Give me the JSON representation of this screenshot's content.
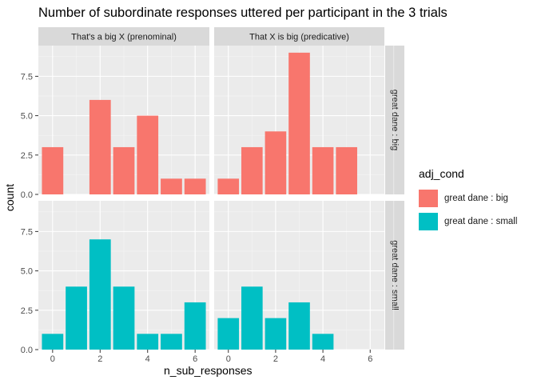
{
  "chart_data": {
    "type": "bar",
    "title": "Number of subordinate responses uttered per participant in the 3 trials",
    "xlabel": "n_sub_responses",
    "ylabel": "count",
    "x_ticks": [
      0,
      2,
      4,
      6
    ],
    "y_ticks": [
      0.0,
      2.5,
      5.0,
      7.5
    ],
    "y_tick_labels": [
      "0.0",
      "2.5",
      "5.0",
      "7.5"
    ],
    "xlim": [
      -0.6,
      6.6
    ],
    "ylim": [
      0,
      9.45
    ],
    "grid": true,
    "legend_position": "right",
    "legend": {
      "title": "adj_cond",
      "entries": [
        {
          "label": "great dane : big",
          "color": "#F8766D"
        },
        {
          "label": "great dane : small",
          "color": "#00BFC4"
        }
      ]
    },
    "facet_columns": [
      "That's a big X (prenominal)",
      "That X is big (predicative)"
    ],
    "facet_rows": [
      "great dane : big",
      "great dane : small"
    ],
    "panels": [
      {
        "row": 0,
        "col": 0,
        "color": "#F8766D",
        "x": [
          0,
          2,
          3,
          4,
          5,
          6
        ],
        "values": [
          3,
          6,
          3,
          5,
          1,
          1
        ]
      },
      {
        "row": 0,
        "col": 1,
        "color": "#F8766D",
        "x": [
          0,
          1,
          2,
          3,
          4,
          5
        ],
        "values": [
          1,
          3,
          4,
          9,
          3,
          3
        ]
      },
      {
        "row": 1,
        "col": 0,
        "color": "#00BFC4",
        "x": [
          0,
          1,
          2,
          3,
          4,
          5,
          6
        ],
        "values": [
          1,
          4,
          7,
          4,
          1,
          1,
          3
        ]
      },
      {
        "row": 1,
        "col": 1,
        "color": "#00BFC4",
        "x": [
          0,
          1,
          2,
          3,
          4
        ],
        "values": [
          2,
          4,
          2,
          3,
          1
        ]
      }
    ]
  }
}
